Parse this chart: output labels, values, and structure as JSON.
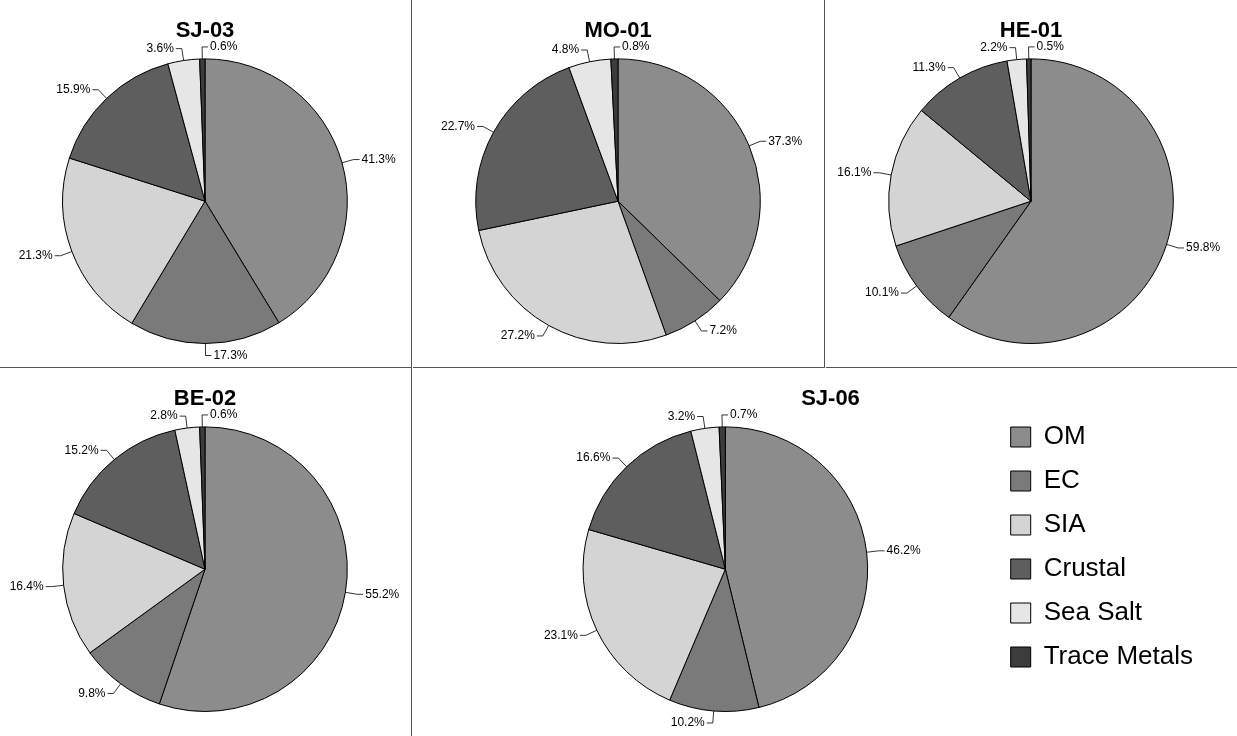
{
  "chart_data": [
    {
      "type": "pie",
      "title": "SJ-03",
      "categories": [
        null,
        null,
        null,
        null,
        null,
        null
      ],
      "values": [
        41.3,
        17.3,
        21.3,
        15.9,
        3.6,
        0.6
      ],
      "value_labels": [
        "41.3%",
        "17.3%",
        "21.3%",
        "15.9%",
        "3.6%",
        "0.6%"
      ],
      "colors": [
        "#8c8c8c",
        "#7a7a7a",
        "#d4d4d4",
        "#5e5e5e",
        "#e6e6e6",
        "#3c3c3c"
      ],
      "legend": false
    },
    {
      "type": "pie",
      "title": "MO-01",
      "categories": [
        null,
        null,
        null,
        null,
        null,
        null
      ],
      "values": [
        37.3,
        7.2,
        27.2,
        22.7,
        4.8,
        0.8
      ],
      "value_labels": [
        "37.3%",
        "7.2%",
        "27.2%",
        "22.7%",
        "4.8%",
        "0.8%"
      ],
      "colors": [
        "#8c8c8c",
        "#7a7a7a",
        "#d4d4d4",
        "#5e5e5e",
        "#e6e6e6",
        "#3c3c3c"
      ],
      "legend": false
    },
    {
      "type": "pie",
      "title": "HE-01",
      "categories": [
        null,
        null,
        null,
        null,
        null,
        null
      ],
      "values": [
        59.8,
        10.1,
        16.1,
        11.3,
        2.2,
        0.5
      ],
      "value_labels": [
        "59.8%",
        "10.1%",
        "16.1%",
        "11.3%",
        "2.2%",
        "0.5%"
      ],
      "colors": [
        "#8c8c8c",
        "#7a7a7a",
        "#d4d4d4",
        "#5e5e5e",
        "#e6e6e6",
        "#3c3c3c"
      ],
      "legend": false
    },
    {
      "type": "pie",
      "title": "BE-02",
      "categories": [
        null,
        null,
        null,
        null,
        null,
        null
      ],
      "values": [
        55.2,
        9.8,
        16.4,
        15.2,
        2.8,
        0.6
      ],
      "value_labels": [
        "55.2%",
        "9.8%",
        "16.4%",
        "15.2%",
        "2.8%",
        "0.6%"
      ],
      "colors": [
        "#8c8c8c",
        "#7a7a7a",
        "#d4d4d4",
        "#5e5e5e",
        "#e6e6e6",
        "#3c3c3c"
      ],
      "legend": false
    },
    {
      "type": "pie",
      "title": "SJ-06",
      "categories": [
        "OM",
        "EC",
        "SIA",
        "Crustal",
        "Sea Salt",
        "Trace Metals"
      ],
      "values": [
        46.2,
        10.2,
        23.1,
        16.6,
        3.2,
        0.7
      ],
      "value_labels": [
        "46.2%",
        "10.2%",
        "23.1%",
        "16.6%",
        "3.2%",
        "0.7%"
      ],
      "colors": [
        "#8c8c8c",
        "#7a7a7a",
        "#d4d4d4",
        "#5e5e5e",
        "#e6e6e6",
        "#3c3c3c"
      ],
      "legend": "right"
    }
  ]
}
